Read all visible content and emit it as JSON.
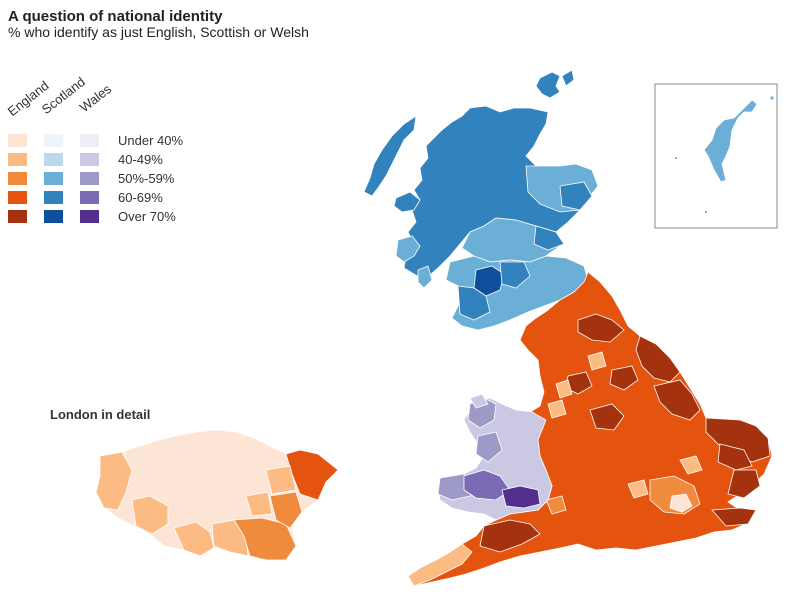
{
  "header": {
    "title": "A question of national identity",
    "subtitle": "% who identify as just English, Scottish or Welsh"
  },
  "legend": {
    "columns": [
      "England",
      "Scotland",
      "Wales"
    ],
    "rows": [
      {
        "label": "Under 40%",
        "colors": [
          "#fde5d6",
          "#eef3fc",
          "#eeedf6"
        ]
      },
      {
        "label": "40-49%",
        "colors": [
          "#fdbb84",
          "#bdd7ec",
          "#cac8e2"
        ]
      },
      {
        "label": "50%-59%",
        "colors": [
          "#f08a3c",
          "#6baed6",
          "#9e9ac8"
        ]
      },
      {
        "label": "60-69%",
        "colors": [
          "#e4540f",
          "#3182bd",
          "#7b6bb4"
        ]
      },
      {
        "label": "Over 70%",
        "colors": [
          "#a5320f",
          "#0d4f9b",
          "#532e8c"
        ]
      }
    ]
  },
  "london": {
    "title": "London in detail"
  },
  "colors": {
    "england_main": "#e4540f",
    "england_dark": "#a5320f",
    "england_mid": "#f08a3c",
    "england_light": "#fdbb84",
    "england_pale": "#fde5d6",
    "scotland_main": "#3182bd",
    "scotland_light": "#6baed6",
    "scotland_dark": "#0d4f9b",
    "wales_light": "#cac8e2",
    "wales_mid": "#7b6bb4",
    "wales_dark": "#532e8c",
    "wales_pale": "#9e9ac8"
  }
}
